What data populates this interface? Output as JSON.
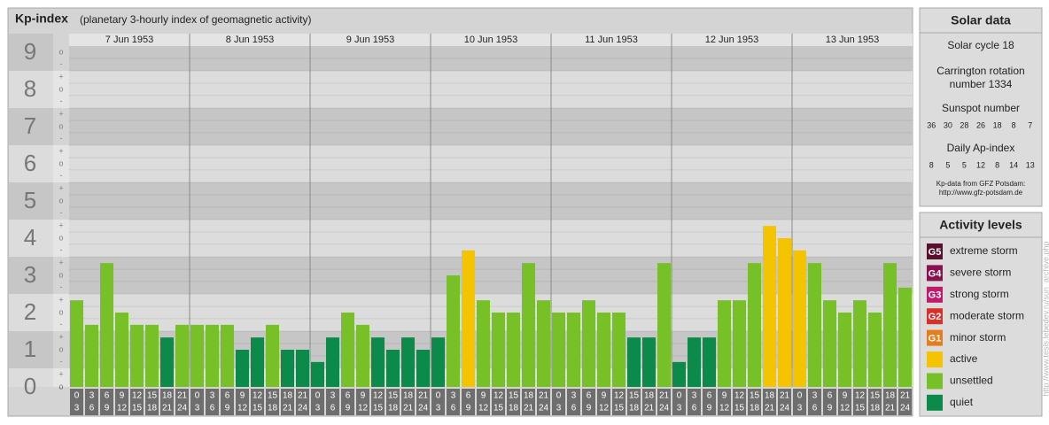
{
  "header": {
    "title": "Kp-index",
    "subtitle": "(planetary 3-hourly index of geomagnetic activity)"
  },
  "chart_data": {
    "type": "bar",
    "days": [
      "7 Jun 1953",
      "8 Jun 1953",
      "9 Jun 1953",
      "10 Jun 1953",
      "11 Jun 1953",
      "12 Jun 1953",
      "13 Jun 1953"
    ],
    "hours": [
      [
        "0",
        "3"
      ],
      [
        "3",
        "6"
      ],
      [
        "6",
        "9"
      ],
      [
        "9",
        "12"
      ],
      [
        "12",
        "15"
      ],
      [
        "15",
        "18"
      ],
      [
        "18",
        "21"
      ],
      [
        "21",
        "24"
      ]
    ],
    "series": [
      {
        "values": [
          2.33,
          1.67,
          3.33,
          2,
          1.67,
          1.67,
          1.33,
          1.67,
          1.67,
          1.67,
          1.67,
          1,
          1.33,
          1.67,
          1,
          1,
          0.67,
          1.33,
          2,
          1.67,
          1.33,
          1,
          1.33,
          1,
          1.33,
          3,
          3.67,
          2.33,
          2,
          2,
          3.33,
          2.33,
          2,
          2,
          2.33,
          2,
          2,
          1.33,
          1.33,
          3.33,
          0.67,
          1.33,
          1.33,
          2.33,
          2.33,
          3.33,
          4.33,
          4,
          3.67,
          3.33,
          2.33,
          2,
          2.33,
          2,
          3.33,
          2.67
        ],
        "colors": [
          "#77c027",
          "#77c027",
          "#77c027",
          "#77c027",
          "#77c027",
          "#77c027",
          "#0b8a4a",
          "#77c027",
          "#77c027",
          "#77c027",
          "#77c027",
          "#0b8a4a",
          "#0b8a4a",
          "#77c027",
          "#0b8a4a",
          "#0b8a4a",
          "#0b8a4a",
          "#0b8a4a",
          "#77c027",
          "#77c027",
          "#0b8a4a",
          "#0b8a4a",
          "#0b8a4a",
          "#0b8a4a",
          "#0b8a4a",
          "#77c027",
          "#f5c400",
          "#77c027",
          "#77c027",
          "#77c027",
          "#77c027",
          "#77c027",
          "#77c027",
          "#77c027",
          "#77c027",
          "#77c027",
          "#77c027",
          "#0b8a4a",
          "#0b8a4a",
          "#77c027",
          "#0b8a4a",
          "#0b8a4a",
          "#0b8a4a",
          "#77c027",
          "#77c027",
          "#77c027",
          "#f5c400",
          "#f5c400",
          "#f5c400",
          "#77c027",
          "#77c027",
          "#77c027",
          "#77c027",
          "#77c027",
          "#77c027",
          "#77c027"
        ]
      }
    ],
    "ylim": [
      0,
      9.5
    ],
    "yticks": [
      0,
      1,
      2,
      3,
      4,
      5,
      6,
      7,
      8,
      9
    ],
    "minor_yticks": [
      {
        "value": 0,
        "label": "o"
      },
      {
        "value": 0.33,
        "label": "+"
      },
      {
        "value": 0.67,
        "label": "-"
      },
      {
        "value": 1,
        "label": "o"
      },
      {
        "value": 1.33,
        "label": "+"
      },
      {
        "value": 1.67,
        "label": "-"
      },
      {
        "value": 2,
        "label": "o"
      },
      {
        "value": 2.33,
        "label": "+"
      },
      {
        "value": 2.67,
        "label": "-"
      },
      {
        "value": 3,
        "label": "o"
      },
      {
        "value": 3.33,
        "label": "+"
      },
      {
        "value": 3.67,
        "label": "-"
      },
      {
        "value": 4,
        "label": "o"
      },
      {
        "value": 4.33,
        "label": "+"
      },
      {
        "value": 4.67,
        "label": "-"
      },
      {
        "value": 5,
        "label": "o"
      },
      {
        "value": 5.33,
        "label": "+"
      },
      {
        "value": 5.67,
        "label": "-"
      },
      {
        "value": 6,
        "label": "o"
      },
      {
        "value": 6.33,
        "label": "+"
      },
      {
        "value": 6.67,
        "label": "-"
      },
      {
        "value": 7,
        "label": "o"
      },
      {
        "value": 7.33,
        "label": "+"
      },
      {
        "value": 7.67,
        "label": "-"
      },
      {
        "value": 8,
        "label": "o"
      },
      {
        "value": 8.33,
        "label": "+"
      },
      {
        "value": 8.67,
        "label": "-"
      },
      {
        "value": 9,
        "label": "o"
      }
    ],
    "grid": true
  },
  "solar_data": {
    "title": "Solar data",
    "solar_cycle": "Solar cycle 18",
    "carrington": [
      "Carrington rotation",
      "number 1334"
    ],
    "sunspot_label": "Sunspot number",
    "sunspot_numbers": [
      36,
      30,
      28,
      26,
      18,
      8,
      7
    ],
    "ap_label": "Daily Ap-index",
    "ap_index": [
      8,
      5,
      5,
      12,
      8,
      14,
      13
    ],
    "source": [
      "Kp-data from GFZ Potsdam:",
      "http://www.gfz-potsdam.de"
    ]
  },
  "activity_levels": {
    "title": "Activity levels",
    "items": [
      {
        "code": "G5",
        "label": "extreme storm",
        "color": "#5a0f2e"
      },
      {
        "code": "G4",
        "label": "severe storm",
        "color": "#8b1050"
      },
      {
        "code": "G3",
        "label": "strong storm",
        "color": "#c01a6c"
      },
      {
        "code": "G2",
        "label": "moderate storm",
        "color": "#d9302a"
      },
      {
        "code": "G1",
        "label": "minor storm",
        "color": "#e57d1e"
      },
      {
        "label": "active",
        "color": "#f5c400"
      },
      {
        "label": "unsettled",
        "color": "#77c027"
      },
      {
        "label": "quiet",
        "color": "#0b8a4a"
      }
    ]
  },
  "watermark": "http://www.tesis.lebedev.ru/sun_archive.php"
}
